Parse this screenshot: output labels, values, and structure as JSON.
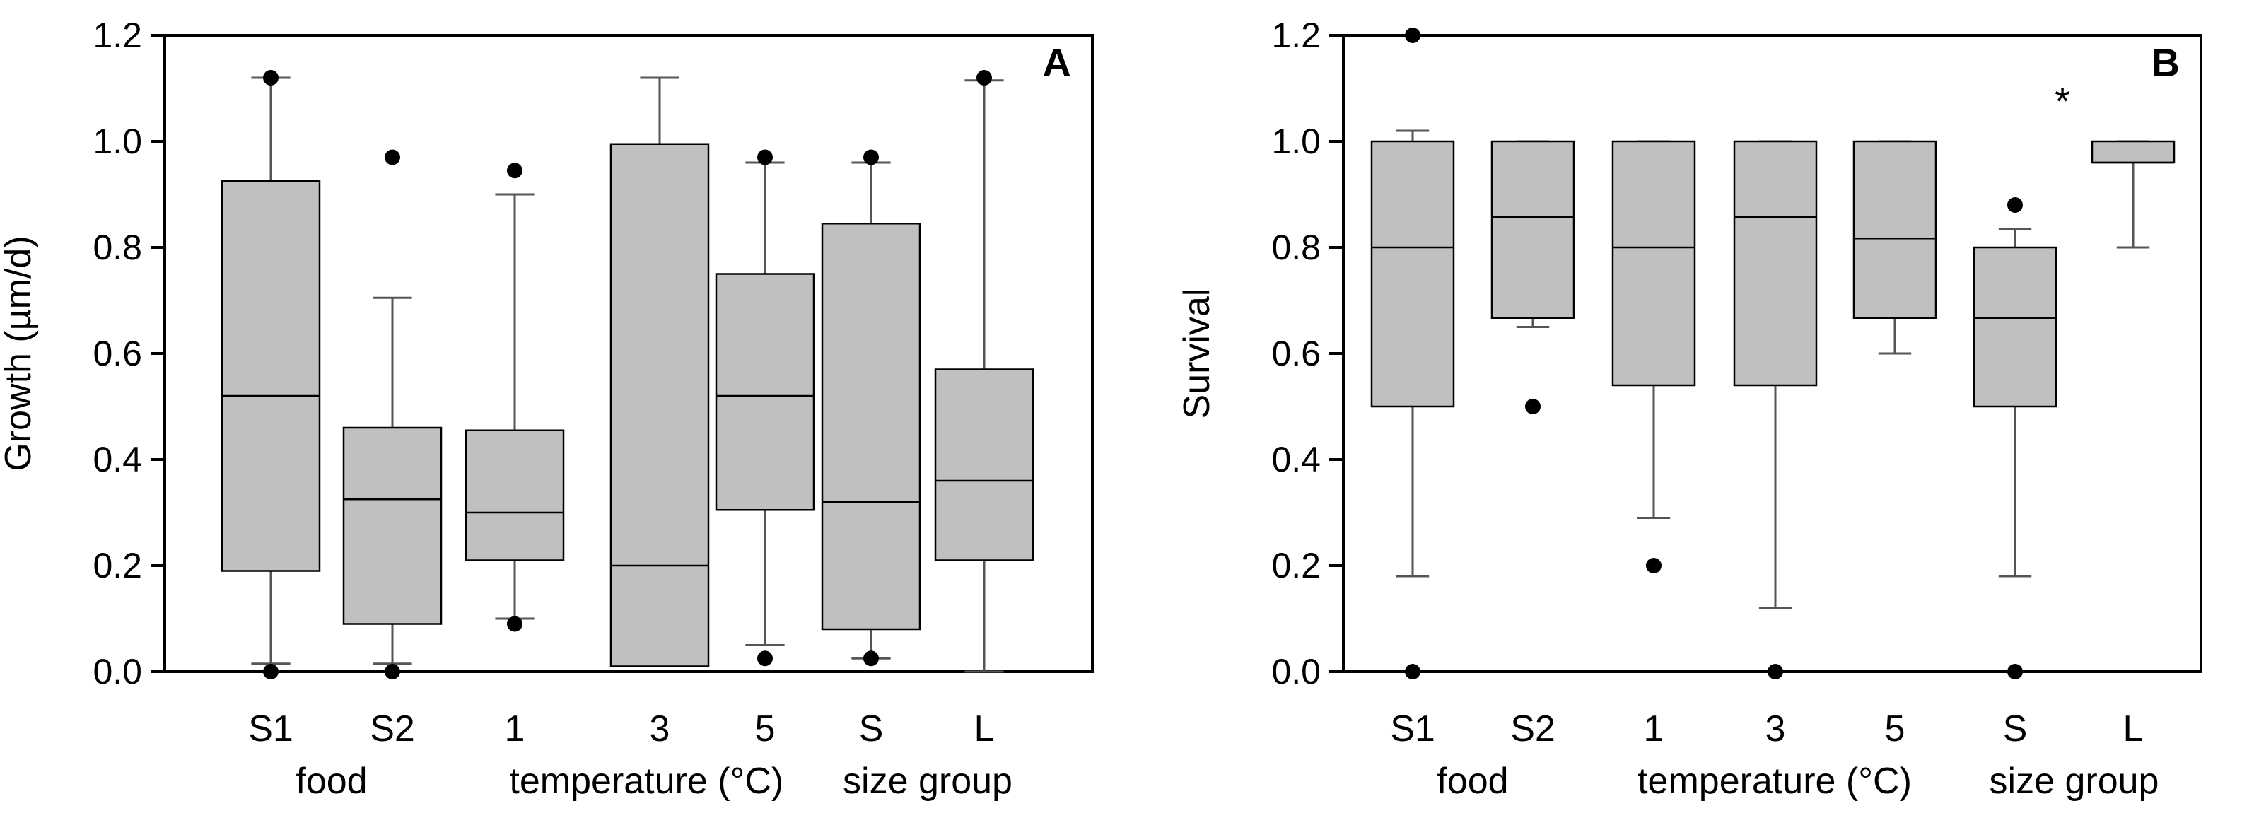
{
  "chart_data": [
    {
      "panel": "A",
      "type": "boxplot",
      "ylabel": "Growth (µm/d)",
      "ylim": [
        0,
        1.2
      ],
      "yticks": [
        "0.0",
        "0.2",
        "0.4",
        "0.6",
        "0.8",
        "1.0",
        "1.2"
      ],
      "categories": [
        "S1",
        "S2",
        "1",
        "3",
        "5",
        "S",
        "L"
      ],
      "groups": [
        {
          "label": "food",
          "categories": [
            "S1",
            "S2"
          ]
        },
        {
          "label": "temperature (°C)",
          "categories": [
            "1",
            "3",
            "5"
          ]
        },
        {
          "label": "size group",
          "categories": [
            "S",
            "L"
          ]
        }
      ],
      "boxes": [
        {
          "category": "S1",
          "whisker_low": 0.015,
          "q1": 0.19,
          "median": 0.52,
          "q3": 0.925,
          "whisker_high": 1.12,
          "outliers": [
            0.0,
            1.12
          ]
        },
        {
          "category": "S2",
          "whisker_low": 0.015,
          "q1": 0.09,
          "median": 0.325,
          "q3": 0.46,
          "whisker_high": 0.705,
          "outliers": [
            0.0,
            0.97
          ]
        },
        {
          "category": "1",
          "whisker_low": 0.1,
          "q1": 0.21,
          "median": 0.3,
          "q3": 0.455,
          "whisker_high": 0.9,
          "outliers": [
            0.09,
            0.945
          ]
        },
        {
          "category": "3",
          "whisker_low": 0.01,
          "q1": 0.01,
          "median": 0.2,
          "q3": 0.995,
          "whisker_high": 1.12,
          "outliers": []
        },
        {
          "category": "5",
          "whisker_low": 0.05,
          "q1": 0.305,
          "median": 0.52,
          "q3": 0.75,
          "whisker_high": 0.96,
          "outliers": [
            0.025,
            0.97
          ]
        },
        {
          "category": "S",
          "whisker_low": 0.025,
          "q1": 0.08,
          "median": 0.32,
          "q3": 0.845,
          "whisker_high": 0.96,
          "outliers": [
            0.025,
            0.97
          ]
        },
        {
          "category": "L",
          "whisker_low": 0.0,
          "q1": 0.21,
          "median": 0.36,
          "q3": 0.57,
          "whisker_high": 1.115,
          "outliers": [
            1.12
          ]
        }
      ],
      "annotations": []
    },
    {
      "panel": "B",
      "type": "boxplot",
      "ylabel": "Survival",
      "ylim": [
        0,
        1.2
      ],
      "yticks": [
        "0.0",
        "0.2",
        "0.4",
        "0.6",
        "0.8",
        "1.0",
        "1.2"
      ],
      "categories": [
        "S1",
        "S2",
        "1",
        "3",
        "5",
        "S",
        "L"
      ],
      "groups": [
        {
          "label": "food",
          "categories": [
            "S1",
            "S2"
          ]
        },
        {
          "label": "temperature (°C)",
          "categories": [
            "1",
            "3",
            "5"
          ]
        },
        {
          "label": "size group",
          "categories": [
            "S",
            "L"
          ]
        }
      ],
      "boxes": [
        {
          "category": "S1",
          "whisker_low": 0.18,
          "q1": 0.5,
          "median": 0.8,
          "q3": 1.0,
          "whisker_high": 1.02,
          "outliers": [
            0.0,
            1.2
          ]
        },
        {
          "category": "S2",
          "whisker_low": 0.65,
          "q1": 0.667,
          "median": 0.857,
          "q3": 1.0,
          "whisker_high": 1.0,
          "outliers": [
            0.5
          ]
        },
        {
          "category": "1",
          "whisker_low": 0.29,
          "q1": 0.54,
          "median": 0.8,
          "q3": 1.0,
          "whisker_high": 1.0,
          "outliers": [
            0.2
          ]
        },
        {
          "category": "3",
          "whisker_low": 0.12,
          "q1": 0.54,
          "median": 0.857,
          "q3": 1.0,
          "whisker_high": 1.0,
          "outliers": [
            0.0
          ]
        },
        {
          "category": "5",
          "whisker_low": 0.6,
          "q1": 0.667,
          "median": 0.817,
          "q3": 1.0,
          "whisker_high": 1.0,
          "outliers": []
        },
        {
          "category": "S",
          "whisker_low": 0.18,
          "q1": 0.5,
          "median": 0.667,
          "q3": 0.8,
          "whisker_high": 0.835,
          "outliers": [
            0.0,
            0.88
          ]
        },
        {
          "category": "L",
          "whisker_low": 0.8,
          "q1": 0.96,
          "median": 0.96,
          "q3": 1.0,
          "whisker_high": 1.0,
          "outliers": []
        }
      ],
      "annotations": [
        {
          "text": "*",
          "category": "L",
          "y": 1.09
        }
      ]
    }
  ],
  "colors": {
    "box_fill": "#c0c0c0",
    "stroke": "#000000",
    "whisker": "#555555",
    "outlier": "#000000"
  }
}
